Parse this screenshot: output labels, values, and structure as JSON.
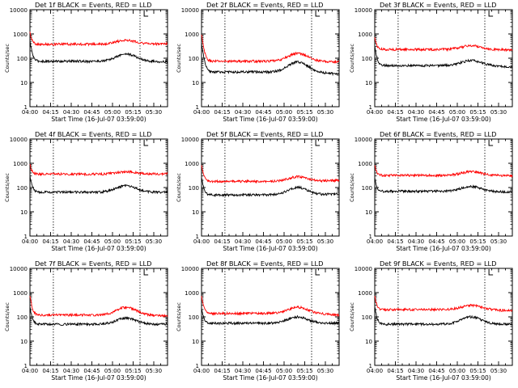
{
  "chart_data": {
    "type": "line",
    "yscale": "log",
    "ylim": [
      1,
      10000
    ],
    "ytick_labels": [
      "1",
      "10",
      "100",
      "1000",
      "10000"
    ],
    "ytick_values": [
      1,
      10,
      100,
      1000,
      10000
    ],
    "xlim_minutes": [
      0,
      100
    ],
    "xtick_labels": [
      "04:00",
      "04:15",
      "04:30",
      "04:45",
      "05:00",
      "05:15",
      "05:30"
    ],
    "xtick_minutes": [
      0,
      15,
      30,
      45,
      60,
      75,
      90
    ],
    "dotted_lines_minutes": [
      17,
      80
    ],
    "marker_minutes": 83,
    "ylabel": "Counts/sec",
    "xlabel": "Start Time (16-Jul-07 03:59:00)",
    "series_colors": {
      "events": "#000000",
      "lld": "#ff0000"
    },
    "panels": [
      {
        "title": "Det 1f BLACK = Events, RED = LLD",
        "events": {
          "spike": 500,
          "base": 75,
          "bump_peak": 150,
          "end": 72
        },
        "lld": {
          "spike": 1200,
          "base": 380,
          "bump_peak": 560,
          "end": 400
        }
      },
      {
        "title": "Det 2f BLACK = Events, RED = LLD",
        "events": {
          "spike": 400,
          "base": 27,
          "bump_peak": 70,
          "end": 22
        },
        "lld": {
          "spike": 900,
          "base": 75,
          "bump_peak": 160,
          "end": 70
        }
      },
      {
        "title": "Det 3f BLACK = Events, RED = LLD",
        "events": {
          "spike": 300,
          "base": 50,
          "bump_peak": 80,
          "end": 45
        },
        "lld": {
          "spike": 700,
          "base": 230,
          "bump_peak": 330,
          "end": 220
        }
      },
      {
        "title": "Det 4f BLACK = Events, RED = LLD",
        "events": {
          "spike": 300,
          "base": 65,
          "bump_peak": 120,
          "end": 65
        },
        "lld": {
          "spike": 900,
          "base": 360,
          "bump_peak": 450,
          "end": 370
        }
      },
      {
        "title": "Det 5f BLACK = Events, RED = LLD",
        "events": {
          "spike": 250,
          "base": 50,
          "bump_peak": 100,
          "end": 55
        },
        "lld": {
          "spike": 800,
          "base": 180,
          "bump_peak": 280,
          "end": 200
        }
      },
      {
        "title": "Det 6f BLACK = Events, RED = LLD",
        "events": {
          "spike": 250,
          "base": 70,
          "bump_peak": 110,
          "end": 65
        },
        "lld": {
          "spike": 800,
          "base": 320,
          "bump_peak": 450,
          "end": 310
        }
      },
      {
        "title": "Det 7f BLACK = Events, RED = LLD",
        "events": {
          "spike": 250,
          "base": 50,
          "bump_peak": 90,
          "end": 50
        },
        "lld": {
          "spike": 700,
          "base": 120,
          "bump_peak": 250,
          "end": 110
        }
      },
      {
        "title": "Det 8f BLACK = Events, RED = LLD",
        "events": {
          "spike": 220,
          "base": 55,
          "bump_peak": 100,
          "end": 55
        },
        "lld": {
          "spike": 700,
          "base": 140,
          "bump_peak": 250,
          "end": 120
        }
      },
      {
        "title": "Det 9f BLACK = Events, RED = LLD",
        "events": {
          "spike": 250,
          "base": 50,
          "bump_peak": 100,
          "end": 50
        },
        "lld": {
          "spike": 700,
          "base": 200,
          "bump_peak": 300,
          "end": 180
        }
      }
    ]
  }
}
